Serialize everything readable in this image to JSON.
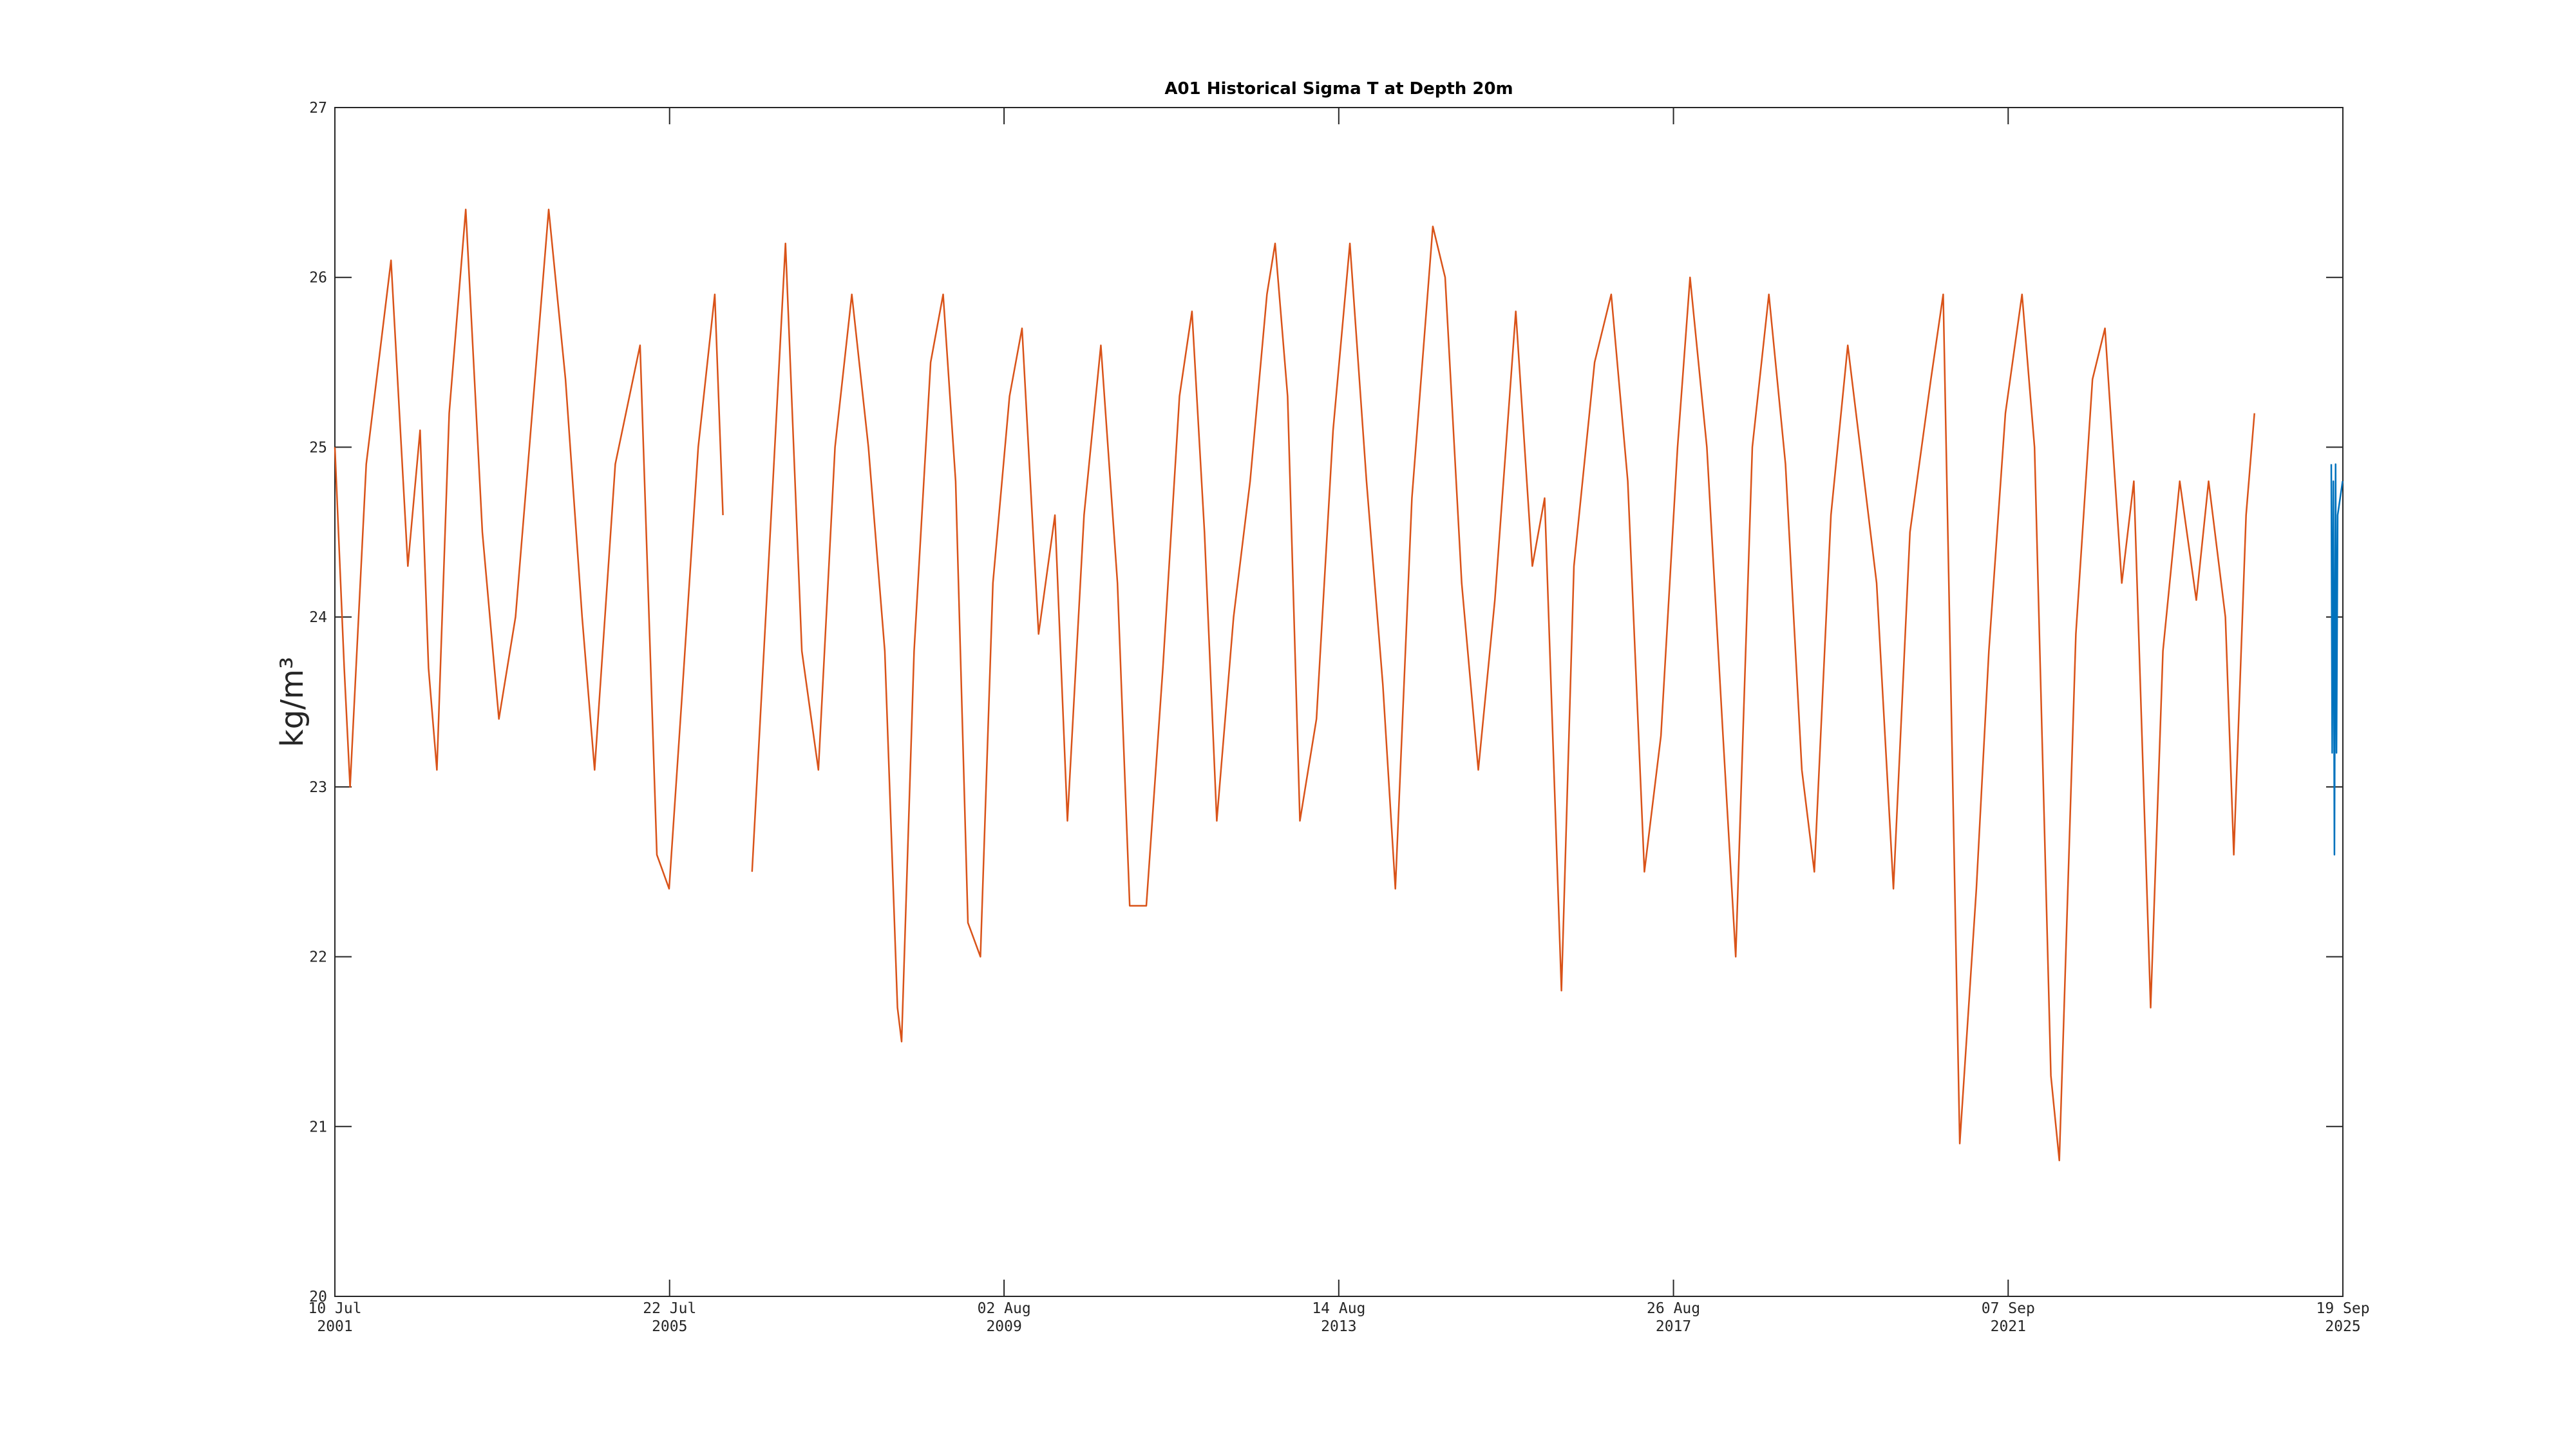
{
  "chart_data": {
    "type": "line",
    "title": "A01 Historical Sigma T at Depth 20m",
    "ylabel": "kg/m³",
    "xlim": [
      "2001-07-10",
      "2025-09-19"
    ],
    "xticks": [
      {
        "value": "2001-07-10",
        "label": "10 Jul\n2001"
      },
      {
        "value": "2005-07-22",
        "label": "22 Jul\n2005"
      },
      {
        "value": "2009-08-02",
        "label": "02 Aug\n2009"
      },
      {
        "value": "2013-08-14",
        "label": "14 Aug\n2013"
      },
      {
        "value": "2017-08-26",
        "label": "26 Aug\n2017"
      },
      {
        "value": "2021-09-07",
        "label": "07 Sep\n2021"
      },
      {
        "value": "2025-09-19",
        "label": "19 Sep\n2025"
      }
    ],
    "ylim": [
      20,
      27
    ],
    "yticks": [
      20,
      21,
      22,
      23,
      24,
      25,
      26,
      27
    ],
    "grid": false,
    "series": [
      {
        "color": "#d95319",
        "x": [
          "2001-07-10",
          "2001-08-20",
          "2001-09-15",
          "2001-11-25",
          "2002-03-14",
          "2002-05-27",
          "2002-07-20",
          "2002-08-26",
          "2002-10-02",
          "2002-11-25",
          "2003-02-06",
          "2003-04-20",
          "2003-07-02",
          "2003-09-13",
          "2003-11-07",
          "2004-02-06",
          "2004-04-20",
          "2004-07-02",
          "2004-08-26",
          "2004-11-25",
          "2005-03-14",
          "2005-05-27",
          "2005-07-20",
          "2005-09-13",
          "2005-11-25",
          "2006-02-06",
          "2006-03-14",
          "2006-05-01",
          "2006-07-20",
          "2006-10-20",
          "2006-12-14",
          "2007-02-24",
          "2007-05-08",
          "2007-07-20",
          "2007-10-02",
          "2007-12-14",
          "2008-02-24",
          "2008-04-20",
          "2008-05-08",
          "2008-07-02",
          "2008-09-13",
          "2008-11-07",
          "2009-01-01",
          "2009-02-24",
          "2009-04-20",
          "2009-06-14",
          "2009-08-26",
          "2009-10-20",
          "2010-01-01",
          "2010-03-14",
          "2010-05-08",
          "2010-07-20",
          "2010-10-02",
          "2010-12-14",
          "2011-02-06",
          "2011-04-20",
          "2011-07-02",
          "2011-09-13",
          "2011-11-07",
          "2012-01-01",
          "2012-02-24",
          "2012-05-08",
          "2012-07-20",
          "2012-10-02",
          "2012-11-07",
          "2013-01-01",
          "2013-02-24",
          "2013-05-08",
          "2013-07-20",
          "2013-10-02",
          "2013-12-14",
          "2014-02-24",
          "2014-04-20",
          "2014-07-02",
          "2014-10-02",
          "2014-11-25",
          "2015-02-06",
          "2015-04-20",
          "2015-07-02",
          "2015-10-02",
          "2015-12-14",
          "2016-02-06",
          "2016-04-20",
          "2016-06-14",
          "2016-09-13",
          "2016-11-25",
          "2017-02-06",
          "2017-04-20",
          "2017-07-02",
          "2017-09-13",
          "2017-11-07",
          "2018-01-20",
          "2018-04-01",
          "2018-05-27",
          "2018-08-08",
          "2018-10-20",
          "2019-01-01",
          "2019-03-14",
          "2019-05-08",
          "2019-07-20",
          "2019-10-02",
          "2019-12-14",
          "2020-02-06",
          "2020-04-20",
          "2020-07-02",
          "2020-10-02",
          "2020-11-25",
          "2021-02-06",
          "2021-04-20",
          "2021-06-14",
          "2021-08-26",
          "2021-11-07",
          "2022-01-01",
          "2022-03-14",
          "2022-04-20",
          "2022-07-02",
          "2022-09-13",
          "2022-11-07",
          "2023-01-20",
          "2023-03-14",
          "2023-05-27",
          "2023-07-20",
          "2023-10-02",
          "2023-12-14",
          "2024-02-06",
          "2024-04-20",
          "2024-05-27",
          "2024-07-20",
          "2024-08-26"
        ],
        "values": [
          25.0,
          23.7,
          23.0,
          24.9,
          26.1,
          24.3,
          25.1,
          23.7,
          23.1,
          25.2,
          26.4,
          24.5,
          23.4,
          24.0,
          24.9,
          26.4,
          25.4,
          24.0,
          23.1,
          24.9,
          25.6,
          22.6,
          22.4,
          23.5,
          25.0,
          25.9,
          24.6,
          null,
          22.5,
          24.8,
          26.2,
          23.8,
          23.1,
          25.0,
          25.9,
          25.0,
          23.8,
          21.7,
          21.5,
          23.8,
          25.5,
          25.9,
          24.8,
          22.2,
          22.0,
          24.2,
          25.3,
          25.7,
          23.9,
          24.6,
          22.8,
          24.6,
          25.6,
          24.2,
          22.3,
          22.3,
          23.7,
          25.3,
          25.8,
          24.5,
          22.8,
          24.0,
          24.8,
          25.9,
          26.2,
          25.3,
          22.8,
          23.4,
          25.1,
          26.2,
          24.8,
          23.6,
          22.4,
          24.7,
          26.3,
          26.0,
          24.2,
          23.1,
          24.1,
          25.8,
          24.3,
          24.7,
          21.8,
          24.3,
          25.5,
          25.9,
          24.8,
          22.5,
          23.3,
          25.0,
          26.0,
          25.0,
          23.3,
          22.0,
          25.0,
          25.9,
          24.9,
          23.1,
          22.5,
          24.6,
          25.6,
          24.8,
          24.2,
          22.4,
          24.5,
          25.4,
          25.9,
          20.9,
          22.4,
          23.8,
          25.2,
          25.9,
          25.0,
          21.3,
          20.8,
          23.9,
          25.4,
          25.7,
          24.2,
          24.8,
          21.7,
          23.8,
          24.8,
          24.1,
          24.8,
          24.0,
          22.6,
          24.6,
          25.2
        ]
      },
      {
        "color": "#0072bd",
        "x": [
          "2025-07-30",
          "2025-08-03",
          "2025-08-08",
          "2025-08-13",
          "2025-08-18",
          "2025-08-22",
          "2025-08-27",
          "2025-09-18"
        ],
        "values": [
          24.9,
          23.2,
          24.8,
          22.6,
          24.9,
          23.2,
          24.6,
          24.8
        ]
      }
    ]
  }
}
